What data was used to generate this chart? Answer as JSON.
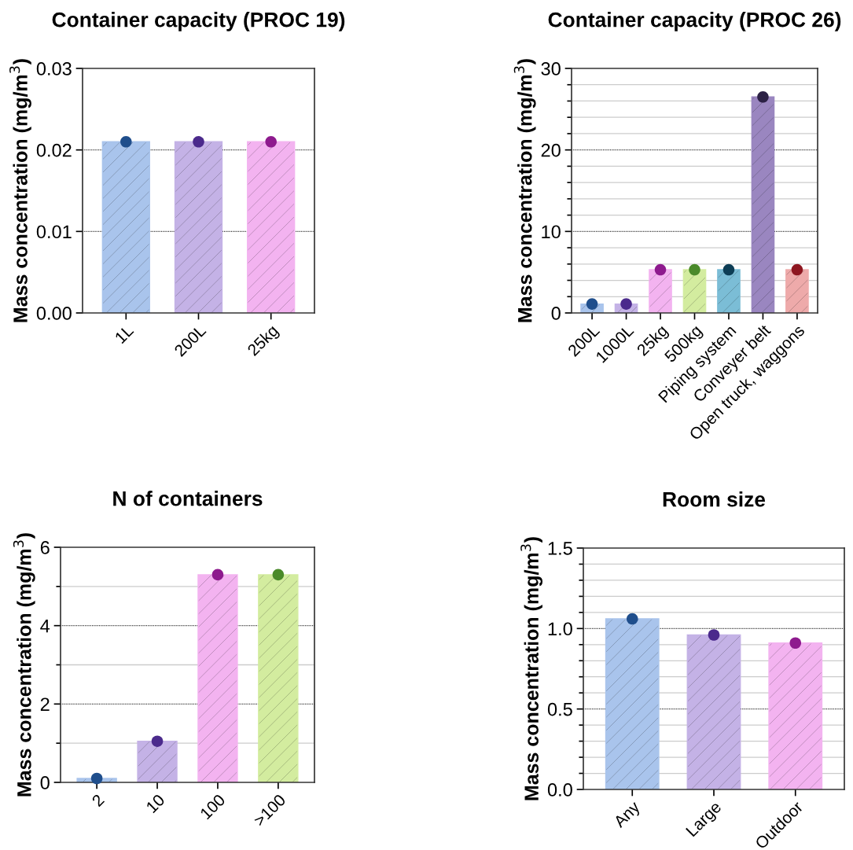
{
  "chart_data": [
    {
      "type": "bar",
      "title": "Container capacity (PROC 19)",
      "ylabel": "Mass concentration (mg/m$^{3}$)",
      "categories": [
        "1L",
        "200L",
        "25kg"
      ],
      "ylim": [
        0,
        0.03
      ],
      "yticks": [
        {
          "value": 0,
          "label": "0.00"
        },
        {
          "value": 0.01,
          "label": "0.01"
        },
        {
          "value": 0.02,
          "label": "0.02"
        },
        {
          "value": 0.03,
          "label": "0.03"
        }
      ],
      "grid": "y",
      "marker": "circle",
      "series": [
        {
          "values": [
            0.021,
            0.021,
            0.021
          ],
          "colors": [
            "#a9c4ec",
            "#c4b2e6",
            "#f3b3f0"
          ]
        },
        {
          "type": "scatter",
          "x": [
            "1L",
            "200L",
            "25kg"
          ],
          "values": [
            0.021,
            0.021,
            0.021
          ],
          "colors": [
            "#1f4e8c",
            "#4b2a8c",
            "#8e1a8e"
          ]
        }
      ]
    },
    {
      "type": "bar",
      "title": "Container capacity (PROC 26)",
      "ylabel": "Mass concentration (mg/m$^{3}$)",
      "categories": [
        "200L",
        "1000L",
        "25kg",
        "500kg",
        "Piping system",
        "Conveyer belt",
        "Open truck, waggons"
      ],
      "ylim": [
        0,
        30
      ],
      "yticks": [
        0,
        {
          "value": 2,
          "label": null
        },
        {
          "value": 4,
          "label": null
        },
        {
          "value": 6,
          "label": null
        },
        {
          "value": 8,
          "label": null
        },
        10,
        {
          "value": 12,
          "label": null
        },
        {
          "value": 14,
          "label": null
        },
        {
          "value": 16,
          "label": null
        },
        {
          "value": 18,
          "label": null
        },
        20,
        {
          "value": 22,
          "label": null
        },
        {
          "value": 24,
          "label": null
        },
        {
          "value": 26,
          "label": null
        },
        {
          "value": 28,
          "label": null
        },
        30
      ],
      "grid": "y",
      "marker": "circle",
      "series": [
        {
          "values": [
            1.1,
            1.1,
            5.3,
            5.3,
            5.3,
            26.5,
            5.3
          ],
          "colors": [
            "#a9c4ec",
            "#c4b2e6",
            "#f3b3f0",
            "#d3ec9f",
            "#7bbdd6",
            "#9a86c0",
            "#eeaaaa"
          ]
        },
        {
          "type": "scatter",
          "x": [
            "200L",
            "1000L",
            "25kg",
            "500kg",
            "Piping system",
            "Conveyer belt",
            "Open truck, waggons"
          ],
          "values": [
            1.1,
            1.1,
            5.3,
            5.3,
            5.3,
            26.5,
            5.3
          ],
          "colors": [
            "#1f4e8c",
            "#4b2a8c",
            "#8e1a8e",
            "#4a8a2a",
            "#0d3d55",
            "#2c2145",
            "#8e1620"
          ]
        }
      ]
    },
    {
      "type": "bar",
      "title": "N of containers",
      "ylabel": "Mass concentration (mg/m$^{3}$)",
      "categories": [
        "2",
        "10",
        "100",
        ">100"
      ],
      "ylim": [
        0,
        6
      ],
      "yticks": [
        0,
        {
          "value": 1,
          "label": null
        },
        2,
        {
          "value": 3,
          "label": null
        },
        4,
        {
          "value": 5,
          "label": null
        },
        6
      ],
      "grid": "y",
      "marker": "circle",
      "series": [
        {
          "values": [
            0.1,
            1.05,
            5.3,
            5.3
          ],
          "colors": [
            "#a9c4ec",
            "#c4b2e6",
            "#f3b3f0",
            "#d3ec9f"
          ]
        },
        {
          "type": "scatter",
          "x": [
            "2",
            "10",
            "100",
            ">100"
          ],
          "values": [
            0.1,
            1.05,
            5.3,
            5.3
          ],
          "colors": [
            "#1f4e8c",
            "#4b2a8c",
            "#8e1a8e",
            "#4a8a2a"
          ]
        }
      ]
    },
    {
      "type": "bar",
      "title": "Room size",
      "ylabel": "Mass concentration (mg/m$^{3}$)",
      "categories": [
        "Any",
        "Large",
        "Outdoor"
      ],
      "ylim": [
        0,
        1.5
      ],
      "yticks": [
        {
          "value": 0,
          "label": "0.0"
        },
        {
          "value": 0.1,
          "label": null
        },
        {
          "value": 0.2,
          "label": null
        },
        {
          "value": 0.3,
          "label": null
        },
        {
          "value": 0.4,
          "label": null
        },
        {
          "value": 0.5,
          "label": "0.5"
        },
        {
          "value": 0.6,
          "label": null
        },
        {
          "value": 0.7,
          "label": null
        },
        {
          "value": 0.8,
          "label": null
        },
        {
          "value": 0.9,
          "label": null
        },
        {
          "value": 1.0,
          "label": "1.0"
        },
        {
          "value": 1.1,
          "label": null
        },
        {
          "value": 1.2,
          "label": null
        },
        {
          "value": 1.3,
          "label": null
        },
        {
          "value": 1.4,
          "label": null
        },
        {
          "value": 1.5,
          "label": "1.5"
        }
      ],
      "grid": "y",
      "marker": "circle",
      "series": [
        {
          "values": [
            1.06,
            0.96,
            0.91
          ],
          "colors": [
            "#a9c4ec",
            "#c4b2e6",
            "#f3b3f0"
          ]
        },
        {
          "type": "scatter",
          "x": [
            "Any",
            "Large",
            "Outdoor"
          ],
          "values": [
            1.06,
            0.96,
            0.91
          ],
          "colors": [
            "#1f4e8c",
            "#4b2a8c",
            "#8e1a8e"
          ]
        }
      ]
    }
  ]
}
